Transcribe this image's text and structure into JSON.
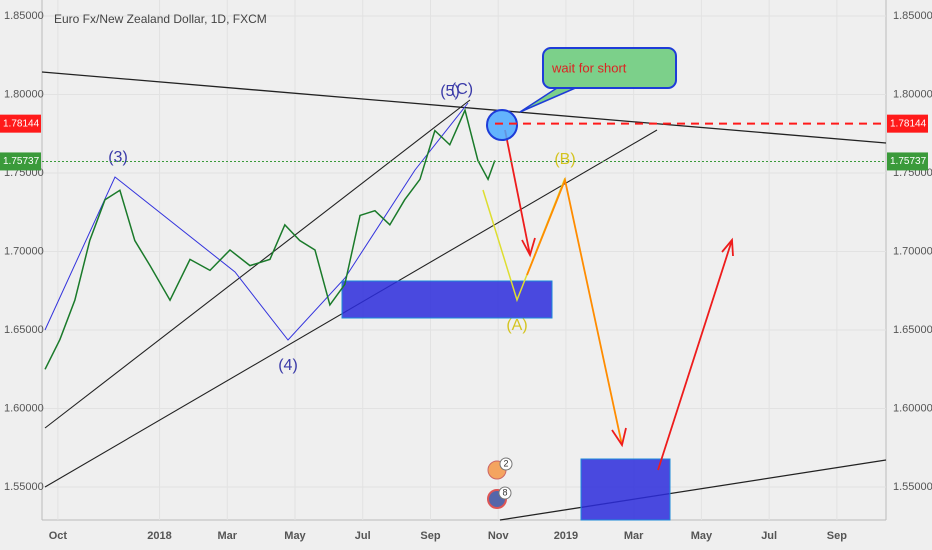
{
  "chart_data": {
    "type": "line",
    "title": "Euro Fx/New Zealand Dollar, 1D, FXCM",
    "x": [
      -0.38,
      0.06,
      0.5,
      0.94,
      1.39,
      1.83,
      2.27,
      2.72,
      3.31,
      3.9,
      4.49,
      5.08,
      5.67,
      6.26,
      6.7,
      7.14,
      7.59,
      8.03,
      8.47,
      8.92,
      9.36,
      9.8,
      10.24,
      10.69,
      11.13,
      11.57,
      12.02,
      12.4,
      12.7,
      12.9
    ],
    "values": [
      1.625,
      1.644,
      1.669,
      1.707,
      1.733,
      1.739,
      1.707,
      1.691,
      1.669,
      1.695,
      1.688,
      1.701,
      1.691,
      1.695,
      1.717,
      1.707,
      1.701,
      1.666,
      1.679,
      1.723,
      1.726,
      1.717,
      1.733,
      1.746,
      1.777,
      1.768,
      1.79,
      1.758,
      1.746,
      1.758
    ],
    "color": "#1a7a2a",
    "xlim": [
      -0.47,
      24.45
    ],
    "ylim": [
      1.529,
      1.8602
    ],
    "xticks": [
      {
        "value": 0,
        "label": "Oct"
      },
      {
        "value": 3,
        "label": "2018"
      },
      {
        "value": 5,
        "label": "Mar"
      },
      {
        "value": 7,
        "label": "May"
      },
      {
        "value": 9,
        "label": "Jul"
      },
      {
        "value": 11,
        "label": "Sep"
      },
      {
        "value": 13,
        "label": "Nov"
      },
      {
        "value": 15,
        "label": "2019"
      },
      {
        "value": 17,
        "label": "Mar"
      },
      {
        "value": 19,
        "label": "May"
      },
      {
        "value": 21,
        "label": "Jul"
      },
      {
        "value": 23,
        "label": "Sep"
      }
    ],
    "yticks": [
      {
        "value": 1.85,
        "label": "1.85000"
      },
      {
        "value": 1.8,
        "label": "1.80000"
      },
      {
        "value": 1.75,
        "label": "1.75000"
      },
      {
        "value": 1.7,
        "label": "1.70000"
      },
      {
        "value": 1.65,
        "label": "1.65000"
      },
      {
        "value": 1.6,
        "label": "1.60000"
      },
      {
        "value": 1.55,
        "label": "1.55000"
      }
    ],
    "price_lines": [
      {
        "value": 1.78144,
        "label": "1.78144",
        "color": "#ff1a1a"
      },
      {
        "value": 1.75737,
        "label": "1.75737",
        "color": "#3a9a3a"
      }
    ],
    "grid": true,
    "annotations": [
      "(3)",
      "(4)",
      "(5)",
      "(C)",
      "(A)",
      "(B)",
      "wait for short",
      "2",
      "8"
    ]
  }
}
